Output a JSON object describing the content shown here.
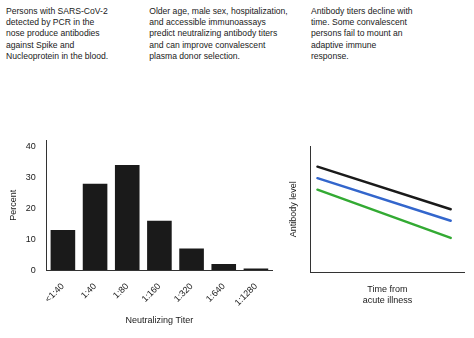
{
  "annotations": [
    "Persons with SARS-CoV-2\ndetected by PCR in the\nnose produce antibodies\nagainst Spike and\nNucleoprotein in the blood.",
    "Older age, male sex, hospitalization,\nand accessible immunoassays\npredict neutralizing antibody titers\nand can improve convalescent\nplasma donor selection.",
    "Antibody titers decline with\ntime. Some convalescent\npersons fail to mount an\nadaptive immune\nresponse."
  ],
  "chart_data": [
    {
      "type": "bar",
      "categories": [
        "<1:40",
        "1:40",
        "1:80",
        "1:160",
        "1:320",
        "1:640",
        "1:1280"
      ],
      "values": [
        13,
        28,
        34,
        16,
        7,
        2,
        0.5
      ],
      "color": "#1a1a1a",
      "xlabel": "Neutralizing Titer",
      "ylabel": "Percent",
      "ylim": [
        0,
        42
      ],
      "yticks": [
        0,
        10,
        20,
        30,
        40
      ],
      "grid": false
    },
    {
      "type": "line",
      "x": [
        0,
        1
      ],
      "series": [
        {
          "color": "#1a1a1a",
          "values": [
            0.92,
            0.55
          ]
        },
        {
          "color": "#3366cc",
          "values": [
            0.82,
            0.45
          ]
        },
        {
          "color": "#33aa33",
          "values": [
            0.72,
            0.3
          ]
        }
      ],
      "xlabel": "Time from\nacute illness",
      "ylabel": "Antibody level",
      "xlim": [
        -0.05,
        1.1
      ],
      "ylim": [
        0,
        1.1
      ],
      "grid": false,
      "tick_labels": false
    }
  ]
}
